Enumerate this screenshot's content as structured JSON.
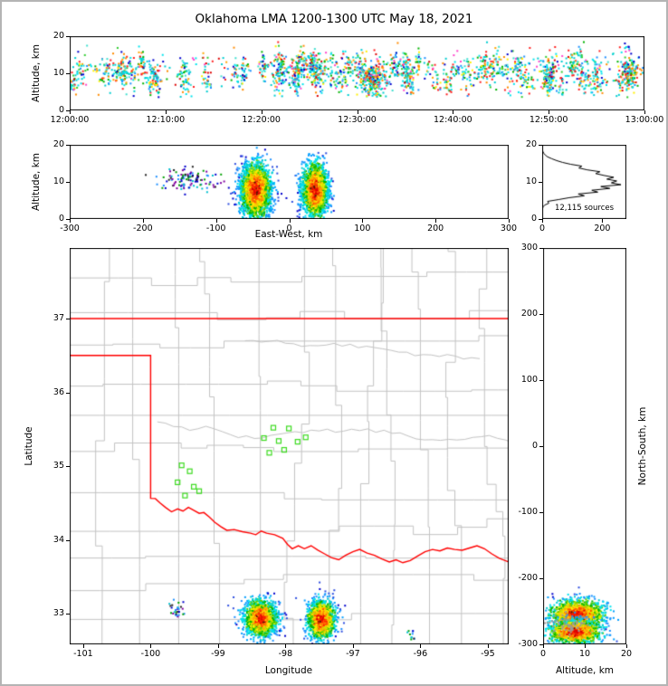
{
  "title": "Oklahoma LMA 1200-1300 UTC May 18, 2021",
  "axis_labels": {
    "altitude": "Altitude, km",
    "east_west": "East-West, km",
    "latitude": "Latitude",
    "longitude": "Longitude",
    "north_south": "North-South, km"
  },
  "colors": {
    "state_border": "#ff0000",
    "county_border": "#c3c3c3",
    "station_marker": "#3ddb20",
    "histogram_line": "#000000",
    "frame": "#000000",
    "background": "#ffffff"
  },
  "chart_data": {
    "time_height": {
      "type": "scatter",
      "ylabel": "Altitude, km",
      "ylim": [
        0,
        20
      ],
      "y_ticks": [
        0,
        10,
        20
      ],
      "x_ticks": [
        "12:00:00",
        "12:10:00",
        "12:20:00",
        "12:30:00",
        "12:40:00",
        "12:50:00",
        "13:00:00"
      ],
      "x_span_seconds": 3600,
      "description": "VHF lightning source altitude vs time; multicolored points 5-18 km, denser after 12:35",
      "gen": {
        "seed": 101,
        "n_background": 520,
        "n_columns": 90,
        "column_pts_min": 6,
        "column_pts_max": 40,
        "alt_mean": 11,
        "alt_sigma": 2.6,
        "time_segments": [
          [
            0,
            480,
            0.16
          ],
          [
            480,
            1250,
            0.1
          ],
          [
            1250,
            2100,
            0.28
          ],
          [
            2100,
            3600,
            0.46
          ]
        ]
      }
    },
    "east_west": {
      "type": "scatter",
      "xlabel": "East-West, km",
      "ylabel": "Altitude, km",
      "xlim": [
        -300,
        300
      ],
      "ylim": [
        0,
        20
      ],
      "x_ticks": [
        -300,
        -200,
        -100,
        0,
        100,
        200,
        300
      ],
      "y_ticks": [
        0,
        10,
        20
      ],
      "description": "Two dense storm cells (density-colored, red cores) near -47 km and +34 km east-west",
      "clusters": [
        {
          "cx": -47,
          "sx": 10,
          "cz": 8,
          "sz": 3.3,
          "n": 3000
        },
        {
          "cx": 34,
          "sx": 8.5,
          "cz": 8,
          "sz": 3.3,
          "n": 2600
        },
        {
          "cx": -138,
          "sx": 20,
          "cz": 10.6,
          "sz": 1.5,
          "n": 110,
          "sparse": true
        }
      ],
      "gen": {
        "seed": 202
      }
    },
    "histogram": {
      "type": "line",
      "xlim": [
        0,
        280
      ],
      "x_ticks": [
        0,
        200
      ],
      "ylim": [
        0,
        20
      ],
      "y_ticks": [
        0,
        10,
        20
      ],
      "bin_km": 0.5,
      "counts": [
        0,
        0,
        0,
        0,
        0,
        1,
        3,
        8,
        22,
        18,
        55,
        90,
        140,
        120,
        185,
        165,
        225,
        195,
        262,
        230,
        248,
        215,
        238,
        205,
        178,
        192,
        150,
        122,
        132,
        95,
        68,
        48,
        32,
        18,
        10,
        5,
        2,
        1,
        0,
        0
      ],
      "total_label": "12,115 sources",
      "description": "Source-count vs altitude profile, peak near 9 km"
    },
    "plan_view": {
      "type": "map-scatter",
      "xlabel": "Longitude",
      "ylabel": "Latitude",
      "lon_lim": [
        -101.2,
        -94.69
      ],
      "lat_lim": [
        32.583,
        37.957
      ],
      "x_ticks": [
        -101,
        -100,
        -99,
        -98,
        -97,
        -96,
        -95
      ],
      "y_ticks": [
        33,
        34,
        35,
        36,
        37
      ],
      "description": "Oklahoma map: gray county lines, red state border, green LMA station squares, storm source clusters at bottom edge",
      "state_border": {
        "kansas_line_lat": 37,
        "panhandle_line_lat": 36.5,
        "west_border_lon": -100,
        "west_border_lat_range": [
          34.563,
          36.5
        ],
        "red_river": [
          [
            -100.0,
            34.563
          ],
          [
            -99.93,
            34.56
          ],
          [
            -99.86,
            34.5
          ],
          [
            -99.78,
            34.44
          ],
          [
            -99.69,
            34.38
          ],
          [
            -99.6,
            34.42
          ],
          [
            -99.52,
            34.39
          ],
          [
            -99.44,
            34.44
          ],
          [
            -99.36,
            34.4
          ],
          [
            -99.28,
            34.36
          ],
          [
            -99.21,
            34.37
          ],
          [
            -99.13,
            34.31
          ],
          [
            -99.05,
            34.24
          ],
          [
            -98.96,
            34.18
          ],
          [
            -98.87,
            34.13
          ],
          [
            -98.76,
            34.14
          ],
          [
            -98.64,
            34.11
          ],
          [
            -98.52,
            34.09
          ],
          [
            -98.44,
            34.07
          ],
          [
            -98.36,
            34.12
          ],
          [
            -98.28,
            34.09
          ],
          [
            -98.16,
            34.07
          ],
          [
            -98.04,
            34.02
          ],
          [
            -97.97,
            33.94
          ],
          [
            -97.9,
            33.88
          ],
          [
            -97.81,
            33.92
          ],
          [
            -97.72,
            33.88
          ],
          [
            -97.62,
            33.92
          ],
          [
            -97.52,
            33.86
          ],
          [
            -97.42,
            33.81
          ],
          [
            -97.32,
            33.76
          ],
          [
            -97.21,
            33.73
          ],
          [
            -97.11,
            33.79
          ],
          [
            -97.0,
            33.84
          ],
          [
            -96.9,
            33.87
          ],
          [
            -96.79,
            33.82
          ],
          [
            -96.68,
            33.79
          ],
          [
            -96.57,
            33.74
          ],
          [
            -96.46,
            33.7
          ],
          [
            -96.36,
            33.73
          ],
          [
            -96.26,
            33.69
          ],
          [
            -96.15,
            33.72
          ],
          [
            -96.04,
            33.78
          ],
          [
            -95.93,
            33.84
          ],
          [
            -95.82,
            33.87
          ],
          [
            -95.71,
            33.85
          ],
          [
            -95.6,
            33.89
          ],
          [
            -95.49,
            33.87
          ],
          [
            -95.38,
            33.86
          ],
          [
            -95.27,
            33.89
          ],
          [
            -95.16,
            33.92
          ],
          [
            -95.05,
            33.88
          ],
          [
            -94.94,
            33.81
          ],
          [
            -94.83,
            33.75
          ],
          [
            -94.69,
            33.7
          ]
        ]
      },
      "stations": [
        [
          -98.18,
          35.52
        ],
        [
          -97.95,
          35.51
        ],
        [
          -98.32,
          35.38
        ],
        [
          -98.1,
          35.34
        ],
        [
          -97.82,
          35.33
        ],
        [
          -97.7,
          35.39
        ],
        [
          -98.02,
          35.22
        ],
        [
          -98.24,
          35.18
        ],
        [
          -99.54,
          35.01
        ],
        [
          -99.42,
          34.93
        ],
        [
          -99.6,
          34.78
        ],
        [
          -99.36,
          34.72
        ],
        [
          -99.49,
          34.6
        ],
        [
          -99.28,
          34.66
        ]
      ],
      "storm_clusters": [
        {
          "lon": -98.38,
          "slon": 0.12,
          "lat": 32.95,
          "slat": 0.12,
          "n": 1600
        },
        {
          "lon": -97.48,
          "slon": 0.1,
          "lat": 32.93,
          "slat": 0.13,
          "n": 1400
        },
        {
          "lon": -99.62,
          "slon": 0.05,
          "lat": 33.05,
          "slat": 0.05,
          "n": 28,
          "sparse": true
        },
        {
          "lon": -96.12,
          "slon": 0.04,
          "lat": 32.7,
          "slat": 0.05,
          "n": 12,
          "sparse": true
        }
      ],
      "gen": {
        "seed": 303,
        "county_lon_step": 0.5,
        "county_lat_step": 0.42
      }
    },
    "north_south": {
      "type": "scatter",
      "xlabel": "Altitude, km",
      "ylabel": "North-South, km",
      "xlim": [
        0,
        20
      ],
      "ylim": [
        -300,
        300
      ],
      "x_ticks": [
        0,
        10,
        20
      ],
      "y_ticks": [
        300,
        200,
        100,
        0,
        -100,
        -200,
        -300
      ],
      "description": "Storm cells near -250 to -290 km north-south, density-colored",
      "clusters": [
        {
          "cns": -253,
          "sns": 11,
          "cz": 8,
          "sz": 3.1,
          "n": 1500
        },
        {
          "cns": -280,
          "sns": 9,
          "cz": 7.5,
          "sz": 3.0,
          "n": 1100
        }
      ],
      "gen": {
        "seed": 404
      }
    }
  }
}
